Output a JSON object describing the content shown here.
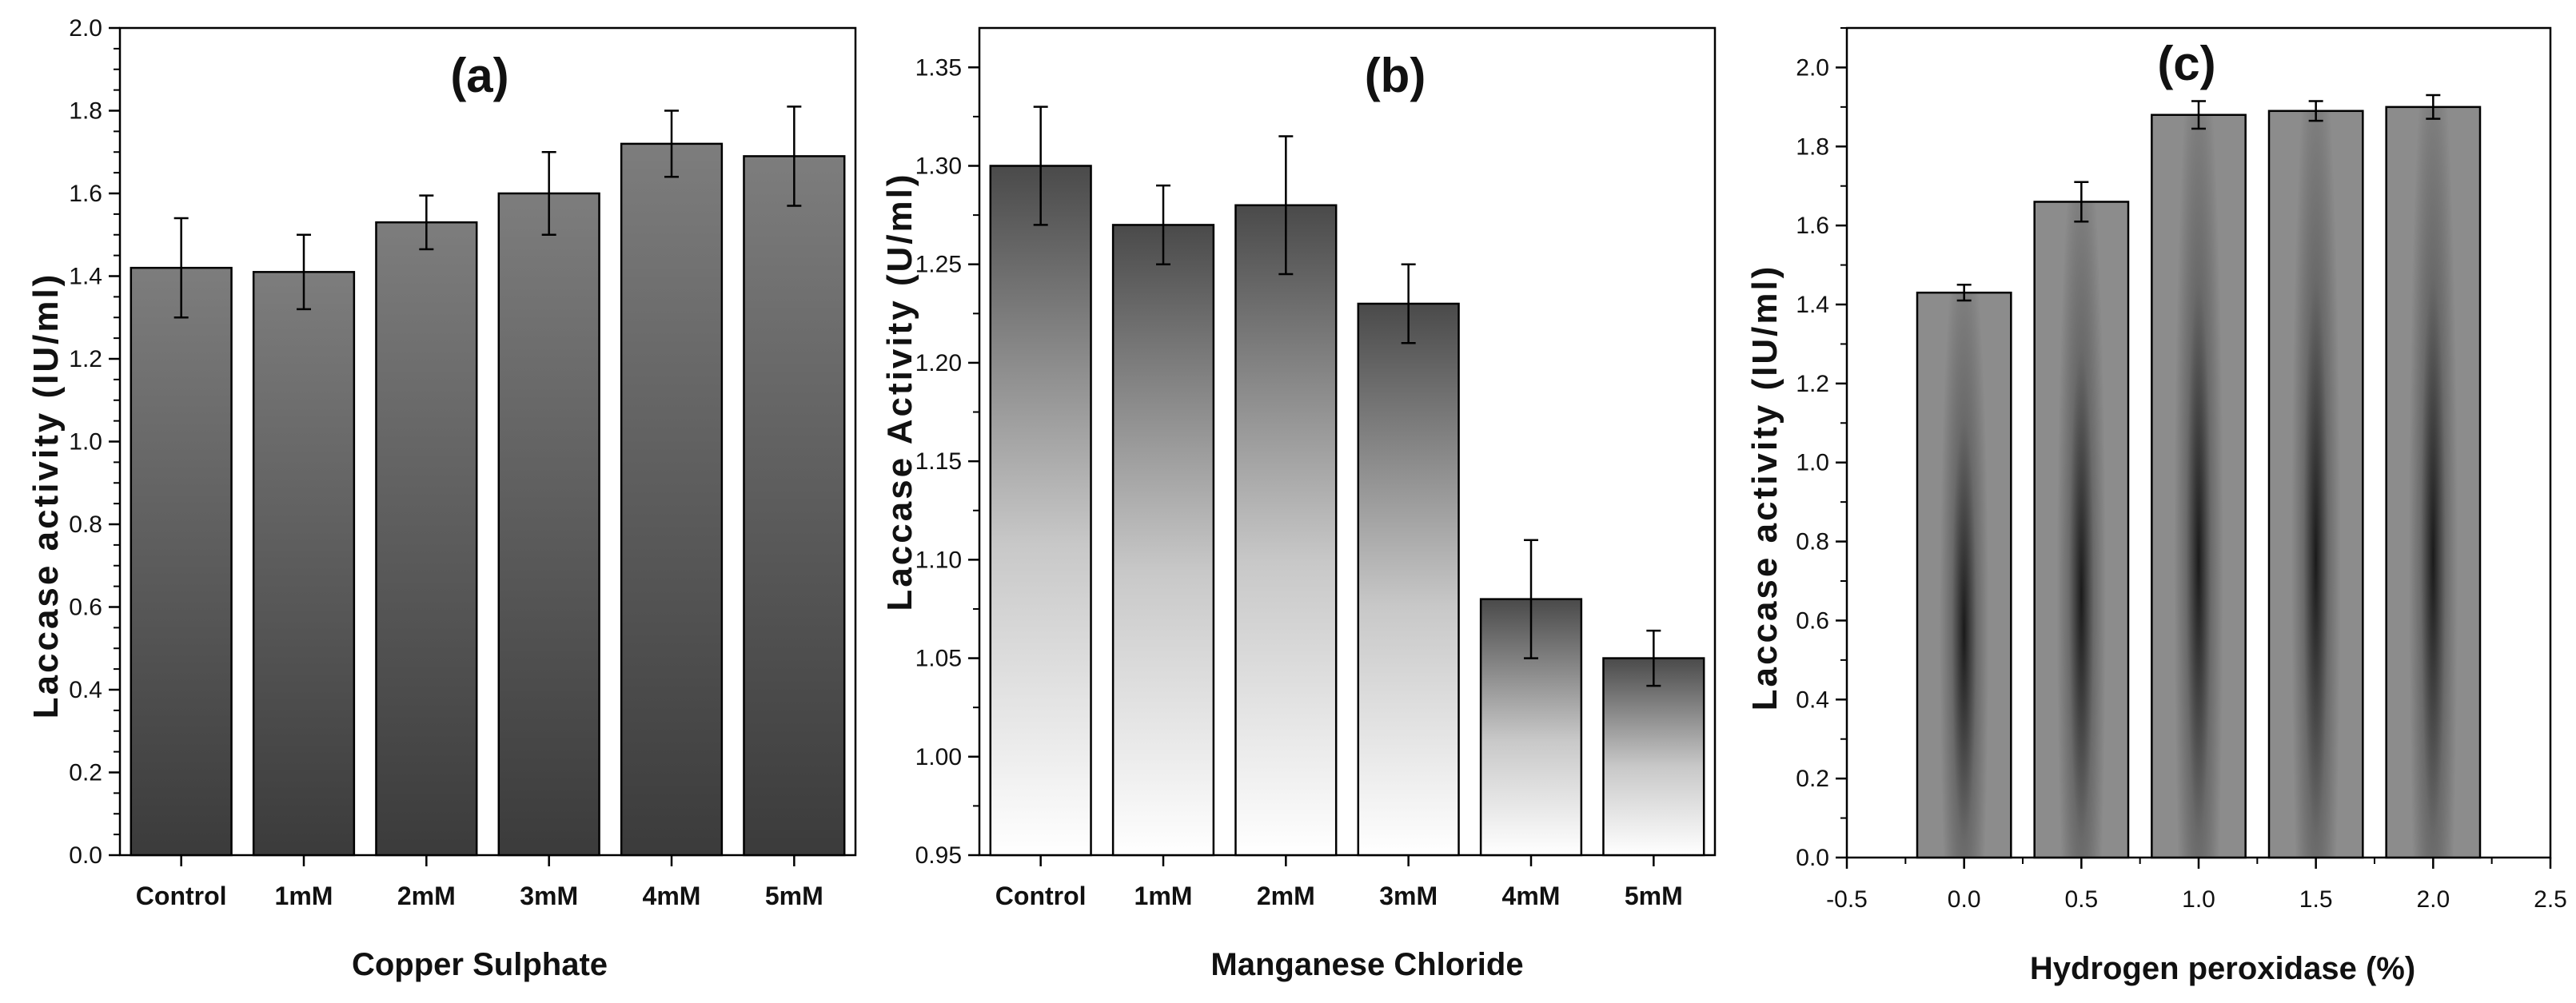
{
  "chart_data": [
    {
      "type": "bar",
      "title": "(a)",
      "xlabel": "Copper Sulphate",
      "ylabel": "Laccase activity (IU/ml)",
      "categories": [
        "Control",
        "1mM",
        "2mM",
        "3mM",
        "4mM",
        "5mM"
      ],
      "values": [
        1.42,
        1.41,
        1.53,
        1.6,
        1.72,
        1.69
      ],
      "errors": [
        0.12,
        0.09,
        0.065,
        0.1,
        0.08,
        0.12
      ],
      "ylim": [
        0.0,
        2.0
      ],
      "yticks": [
        "0.0",
        "0.2",
        "0.4",
        "0.6",
        "0.8",
        "1.0",
        "1.2",
        "1.4",
        "1.6",
        "1.8",
        "2.0"
      ],
      "fill_style": "vertical gradient grey"
    },
    {
      "type": "bar",
      "title": "(b)",
      "xlabel": "Manganese Chloride",
      "ylabel": "Laccase Activity (U/ml)",
      "categories": [
        "Control",
        "1mM",
        "2mM",
        "3mM",
        "4mM",
        "5mM"
      ],
      "values": [
        1.3,
        1.27,
        1.28,
        1.23,
        1.08,
        1.05
      ],
      "errors": [
        0.03,
        0.02,
        0.035,
        0.02,
        0.03,
        0.014
      ],
      "ylim": [
        0.95,
        1.37
      ],
      "yticks": [
        "0.95",
        "1.00",
        "1.05",
        "1.10",
        "1.15",
        "1.20",
        "1.25",
        "1.30",
        "1.35"
      ],
      "fill_style": "dark-to-white gradient"
    },
    {
      "type": "bar",
      "title": "(c)",
      "xlabel": "Hydrogen peroxidase (%)",
      "ylabel": "Laccase activity (IU/ml)",
      "x": [
        0.0,
        0.5,
        1.0,
        1.5,
        2.0
      ],
      "values": [
        1.43,
        1.66,
        1.88,
        1.89,
        1.9
      ],
      "errors": [
        0.02,
        0.05,
        0.035,
        0.025,
        0.03
      ],
      "xlim": [
        -0.5,
        2.5
      ],
      "ylim": [
        0.0,
        2.1
      ],
      "xticks": [
        "-0.5",
        "0.0",
        "0.5",
        "1.0",
        "1.5",
        "2.0",
        "2.5"
      ],
      "yticks": [
        "0.0",
        "0.2",
        "0.4",
        "0.6",
        "0.8",
        "1.0",
        "1.2",
        "1.4",
        "1.6",
        "1.8",
        "2.0"
      ],
      "fill_style": "radial dark center"
    }
  ]
}
